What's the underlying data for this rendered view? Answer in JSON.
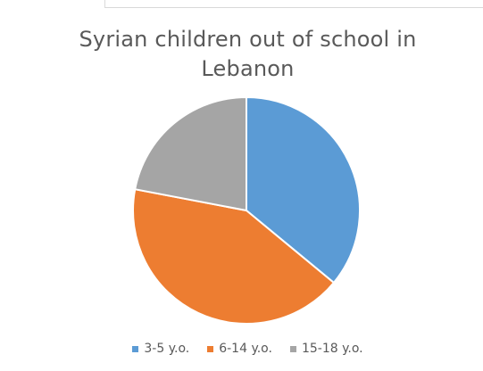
{
  "chart_data": {
    "type": "pie",
    "title_lines": [
      "Syrian children out of school in",
      "Lebanon"
    ],
    "categories": [
      "3-5 y.o.",
      "6-14 y.o.",
      "15-18 y.o."
    ],
    "values": [
      36,
      42,
      22
    ],
    "colors": [
      "#5B9BD5",
      "#ED7D31",
      "#A5A5A5"
    ],
    "start_angle_deg": 0,
    "direction": "clockwise",
    "legend_position": "bottom"
  }
}
